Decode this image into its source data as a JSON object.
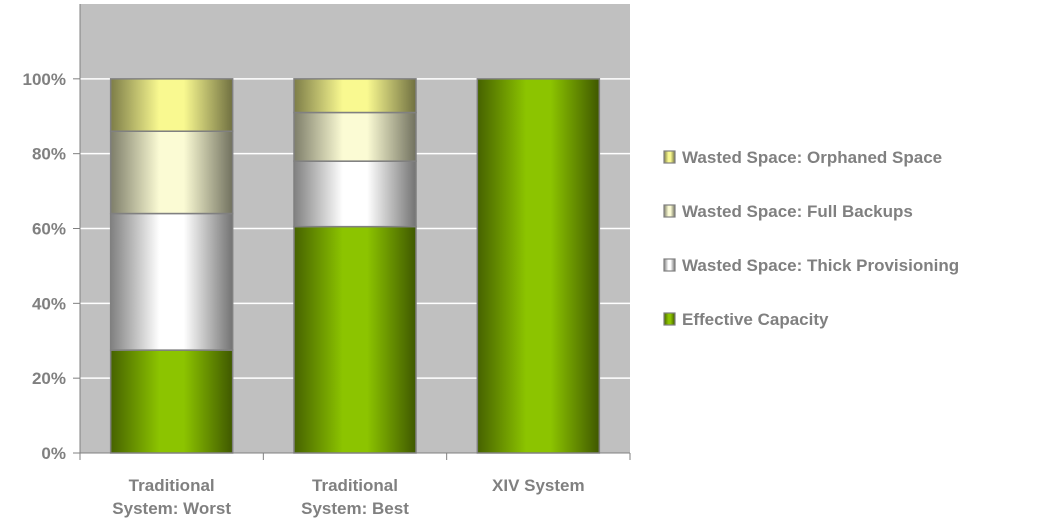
{
  "chart_data": {
    "type": "bar",
    "stacked": true,
    "percent": true,
    "categories": [
      [
        "Traditional",
        "System: Worst"
      ],
      [
        "Traditional",
        "System: Best"
      ],
      [
        "XIV System"
      ]
    ],
    "series": [
      {
        "name": "Effective Capacity",
        "values": [
          27.5,
          60.5,
          100
        ],
        "color": "#8cc400"
      },
      {
        "name": "Wasted Space: Thick Provisioning",
        "values": [
          36.5,
          17.5,
          0
        ],
        "color": "#ffffff"
      },
      {
        "name": "Wasted Space: Full Backups",
        "values": [
          22,
          13,
          0
        ],
        "color": "#fbfbd4"
      },
      {
        "name": "Wasted Space: Orphaned Space",
        "values": [
          14,
          9,
          0
        ],
        "color": "#f9f990"
      }
    ],
    "ylim": [
      0,
      120
    ],
    "yticks": [
      "0%",
      "20%",
      "40%",
      "60%",
      "80%",
      "100%"
    ],
    "grid": true,
    "plot_background": "#c0c0c0",
    "legend_position": "right"
  }
}
